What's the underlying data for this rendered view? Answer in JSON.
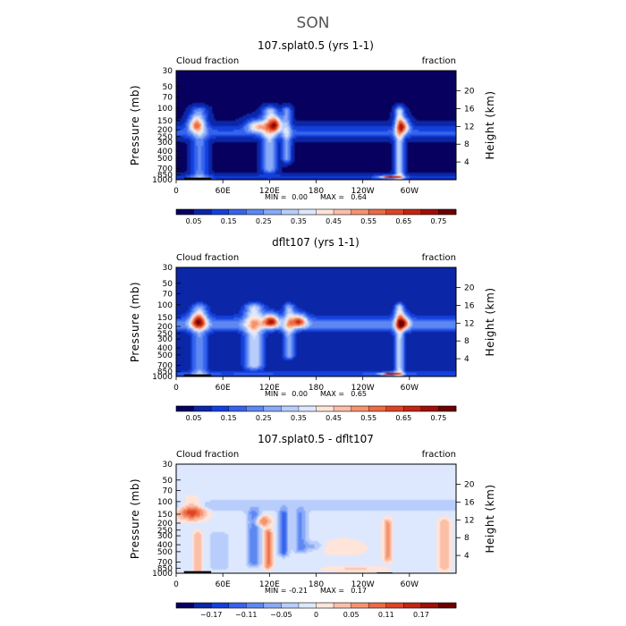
{
  "figure_title": "SON",
  "chart_data": [
    {
      "type": "heatmap",
      "title": "107.splat0.5 (yrs 1-1)",
      "left_label": "Cloud fraction",
      "right_label": "fraction",
      "ylabel": "Pressure (mb)",
      "ylabel_right": "Height (km)",
      "x_ticks": [
        "0",
        "60E",
        "120E",
        "180",
        "120W",
        "60W"
      ],
      "x_tick_lon": [
        0,
        60,
        120,
        180,
        240,
        300
      ],
      "xlim": [
        0,
        360
      ],
      "y_ticks": [
        "30",
        "50",
        "70",
        "100",
        "150",
        "200",
        "250",
        "300",
        "400",
        "500",
        "700",
        "850",
        "1000"
      ],
      "y_tick_values": [
        30,
        50,
        70,
        100,
        150,
        200,
        250,
        300,
        400,
        500,
        700,
        850,
        1000
      ],
      "ylim": [
        30,
        1000
      ],
      "height_ticks": [
        "20",
        "16",
        "12",
        "8",
        "4"
      ],
      "height_tick_values": [
        20,
        16,
        12,
        8,
        4
      ],
      "min_label": "MIN =",
      "min": "0.00",
      "max_label": "MAX =",
      "max": "0.64",
      "colorbar_labels": [
        "0.05",
        "0.15",
        "0.25",
        "0.35",
        "0.45",
        "0.55",
        "0.65",
        "0.75"
      ],
      "colorbar_colors": [
        "#07005e",
        "#0b26a6",
        "#1340dd",
        "#3663ec",
        "#5d87f2",
        "#89aaf7",
        "#b8cdfb",
        "#dde8ff",
        "#ffe4da",
        "#fbbea7",
        "#f5936f",
        "#ec6a45",
        "#dd4424",
        "#c42413",
        "#9f0f06",
        "#6d0000"
      ],
      "colorbar_levels": [
        0,
        0.05,
        0.1,
        0.15,
        0.2,
        0.25,
        0.3,
        0.35,
        0.4,
        0.45,
        0.5,
        0.55,
        0.6,
        0.65,
        0.7,
        0.75,
        0.8
      ],
      "features": [
        {
          "kind": "base",
          "value": 0.04
        },
        {
          "kind": "column",
          "lon": 30,
          "p_top": 110,
          "p_bot": 1000,
          "width": 10,
          "value": 0.18
        },
        {
          "kind": "column",
          "lon": 120,
          "p_top": 110,
          "p_bot": 700,
          "width": 9,
          "value": 0.26
        },
        {
          "kind": "column",
          "lon": 142,
          "p_top": 110,
          "p_bot": 500,
          "width": 6,
          "value": 0.22
        },
        {
          "kind": "column",
          "lon": 287,
          "p_top": 110,
          "p_bot": 900,
          "width": 6,
          "value": 0.3
        },
        {
          "kind": "blob",
          "lon": 25,
          "p": 170,
          "dlon": 10,
          "dp": 40,
          "value": 0.36
        },
        {
          "kind": "blob",
          "lon": 105,
          "p": 180,
          "dlon": 14,
          "dp": 35,
          "value": 0.38
        },
        {
          "kind": "blob",
          "lon": 128,
          "p": 170,
          "dlon": 8,
          "dp": 40,
          "value": 0.5
        },
        {
          "kind": "blob",
          "lon": 292,
          "p": 180,
          "dlon": 8,
          "dp": 40,
          "value": 0.42
        },
        {
          "kind": "blob",
          "lon": 275,
          "p": 920,
          "dlon": 12,
          "dp": 40,
          "value": 0.56
        },
        {
          "kind": "layer",
          "p": 220,
          "dp": 45,
          "value": 0.12
        },
        {
          "kind": "layer",
          "p": 920,
          "dp": 70,
          "value": 0.1
        }
      ],
      "terrain": [
        {
          "lon0": 10,
          "lon1": 45,
          "p": 935
        }
      ]
    },
    {
      "type": "heatmap",
      "title": "dflt107 (yrs 1-1)",
      "left_label": "Cloud fraction",
      "right_label": "fraction",
      "ylabel": "Pressure (mb)",
      "ylabel_right": "Height (km)",
      "x_ticks": [
        "0",
        "60E",
        "120E",
        "180",
        "120W",
        "60W"
      ],
      "x_tick_lon": [
        0,
        60,
        120,
        180,
        240,
        300
      ],
      "xlim": [
        0,
        360
      ],
      "y_ticks": [
        "30",
        "50",
        "70",
        "100",
        "150",
        "200",
        "250",
        "300",
        "400",
        "500",
        "700",
        "850",
        "1000"
      ],
      "y_tick_values": [
        30,
        50,
        70,
        100,
        150,
        200,
        250,
        300,
        400,
        500,
        700,
        850,
        1000
      ],
      "ylim": [
        30,
        1000
      ],
      "height_ticks": [
        "20",
        "16",
        "12",
        "8",
        "4"
      ],
      "height_tick_values": [
        20,
        16,
        12,
        8,
        4
      ],
      "min_label": "MIN =",
      "min": "0.00",
      "max_label": "MAX =",
      "max": "0.65",
      "colorbar_labels": [
        "0.05",
        "0.15",
        "0.25",
        "0.35",
        "0.45",
        "0.55",
        "0.65",
        "0.75"
      ],
      "colorbar_colors": [
        "#07005e",
        "#0b26a6",
        "#1340dd",
        "#3663ec",
        "#5d87f2",
        "#89aaf7",
        "#b8cdfb",
        "#dde8ff",
        "#ffe4da",
        "#fbbea7",
        "#f5936f",
        "#ec6a45",
        "#dd4424",
        "#c42413",
        "#9f0f06",
        "#6d0000"
      ],
      "colorbar_levels": [
        0,
        0.05,
        0.1,
        0.15,
        0.2,
        0.25,
        0.3,
        0.35,
        0.4,
        0.45,
        0.5,
        0.55,
        0.6,
        0.65,
        0.7,
        0.75,
        0.8
      ],
      "features": [
        {
          "kind": "base",
          "value": 0.05
        },
        {
          "kind": "column",
          "lon": 30,
          "p_top": 110,
          "p_bot": 1000,
          "width": 10,
          "value": 0.2
        },
        {
          "kind": "column",
          "lon": 100,
          "p_top": 110,
          "p_bot": 700,
          "width": 12,
          "value": 0.3
        },
        {
          "kind": "column",
          "lon": 145,
          "p_top": 110,
          "p_bot": 500,
          "width": 7,
          "value": 0.24
        },
        {
          "kind": "column",
          "lon": 287,
          "p_top": 110,
          "p_bot": 900,
          "width": 6,
          "value": 0.3
        },
        {
          "kind": "blob",
          "lon": 28,
          "p": 170,
          "dlon": 10,
          "dp": 40,
          "value": 0.38
        },
        {
          "kind": "blob",
          "lon": 122,
          "p": 170,
          "dlon": 10,
          "dp": 35,
          "value": 0.52
        },
        {
          "kind": "blob",
          "lon": 158,
          "p": 170,
          "dlon": 10,
          "dp": 35,
          "value": 0.45
        },
        {
          "kind": "blob",
          "lon": 292,
          "p": 180,
          "dlon": 8,
          "dp": 40,
          "value": 0.42
        },
        {
          "kind": "blob",
          "lon": 275,
          "p": 920,
          "dlon": 12,
          "dp": 40,
          "value": 0.56
        },
        {
          "kind": "layer",
          "p": 190,
          "dp": 45,
          "value": 0.18
        },
        {
          "kind": "layer",
          "p": 920,
          "dp": 70,
          "value": 0.1
        }
      ],
      "terrain": [
        {
          "lon0": 10,
          "lon1": 45,
          "p": 935
        }
      ]
    },
    {
      "type": "heatmap",
      "title": "107.splat0.5 - dflt107",
      "left_label": "Cloud fraction",
      "right_label": "fraction",
      "ylabel": "Pressure (mb)",
      "ylabel_right": "Height (km)",
      "x_ticks": [
        "0",
        "60E",
        "120E",
        "180",
        "120W",
        "60W"
      ],
      "x_tick_lon": [
        0,
        60,
        120,
        180,
        240,
        300
      ],
      "xlim": [
        0,
        360
      ],
      "y_ticks": [
        "30",
        "50",
        "70",
        "100",
        "150",
        "200",
        "250",
        "300",
        "400",
        "500",
        "700",
        "850",
        "1000"
      ],
      "y_tick_values": [
        30,
        50,
        70,
        100,
        150,
        200,
        250,
        300,
        400,
        500,
        700,
        850,
        1000
      ],
      "ylim": [
        30,
        1000
      ],
      "height_ticks": [
        "20",
        "16",
        "12",
        "8",
        "4"
      ],
      "height_tick_values": [
        20,
        16,
        12,
        8,
        4
      ],
      "min_label": "MIN =",
      "min": "-0.21",
      "max_label": "MAX =",
      "max": "0.17",
      "colorbar_labels": [
        "−0.17",
        "−0.11",
        "−0.05",
        "0",
        "0.05",
        "0.11",
        "0.17"
      ],
      "colorbar_colors": [
        "#07005e",
        "#0b26a6",
        "#1340dd",
        "#3663ec",
        "#5d87f2",
        "#89aaf7",
        "#b8cdfb",
        "#dde8ff",
        "#ffe4da",
        "#fbbea7",
        "#f5936f",
        "#ec6a45",
        "#dd4424",
        "#c42413",
        "#9f0f06",
        "#6d0000"
      ],
      "colorbar_levels": [
        -0.23,
        -0.2,
        -0.17,
        -0.14,
        -0.11,
        -0.08,
        -0.05,
        -0.02,
        0,
        0.02,
        0.05,
        0.08,
        0.11,
        0.14,
        0.17,
        0.2,
        0.23
      ],
      "features": [
        {
          "kind": "base",
          "value": -0.005
        },
        {
          "kind": "column",
          "lon": 55,
          "p_top": 300,
          "p_bot": 800,
          "width": 14,
          "value": -0.03
        },
        {
          "kind": "column",
          "lon": 100,
          "p_top": 150,
          "p_bot": 700,
          "width": 8,
          "value": -0.1
        },
        {
          "kind": "column",
          "lon": 138,
          "p_top": 150,
          "p_bot": 500,
          "width": 6,
          "value": -0.12
        },
        {
          "kind": "column",
          "lon": 160,
          "p_top": 150,
          "p_bot": 450,
          "width": 8,
          "value": -0.08
        },
        {
          "kind": "column",
          "lon": 118,
          "p_top": 280,
          "p_bot": 750,
          "width": 5,
          "value": 0.09
        },
        {
          "kind": "column",
          "lon": 28,
          "p_top": 300,
          "p_bot": 950,
          "width": 5,
          "value": 0.05
        },
        {
          "kind": "column",
          "lon": 272,
          "p_top": 200,
          "p_bot": 600,
          "width": 5,
          "value": 0.06
        },
        {
          "kind": "column",
          "lon": 345,
          "p_top": 200,
          "p_bot": 800,
          "width": 8,
          "value": 0.04
        },
        {
          "kind": "blob",
          "lon": 20,
          "p": 140,
          "dlon": 16,
          "dp": 35,
          "value": 0.14
        },
        {
          "kind": "blob",
          "lon": 110,
          "p": 190,
          "dlon": 10,
          "dp": 30,
          "value": 0.1
        },
        {
          "kind": "blob",
          "lon": 175,
          "p": 420,
          "dlon": 12,
          "dp": 60,
          "value": -0.05
        },
        {
          "kind": "blob",
          "lon": 215,
          "p": 450,
          "dlon": 25,
          "dp": 100,
          "value": 0.025
        },
        {
          "kind": "blob",
          "lon": 230,
          "p": 880,
          "dlon": 35,
          "dp": 80,
          "value": 0.03
        },
        {
          "kind": "layer",
          "p": 115,
          "dp": 20,
          "value": -0.04
        }
      ],
      "terrain": [
        {
          "lon0": 10,
          "lon1": 45,
          "p": 935
        },
        {
          "lon0": 258,
          "lon1": 278,
          "p": 975
        }
      ]
    }
  ]
}
